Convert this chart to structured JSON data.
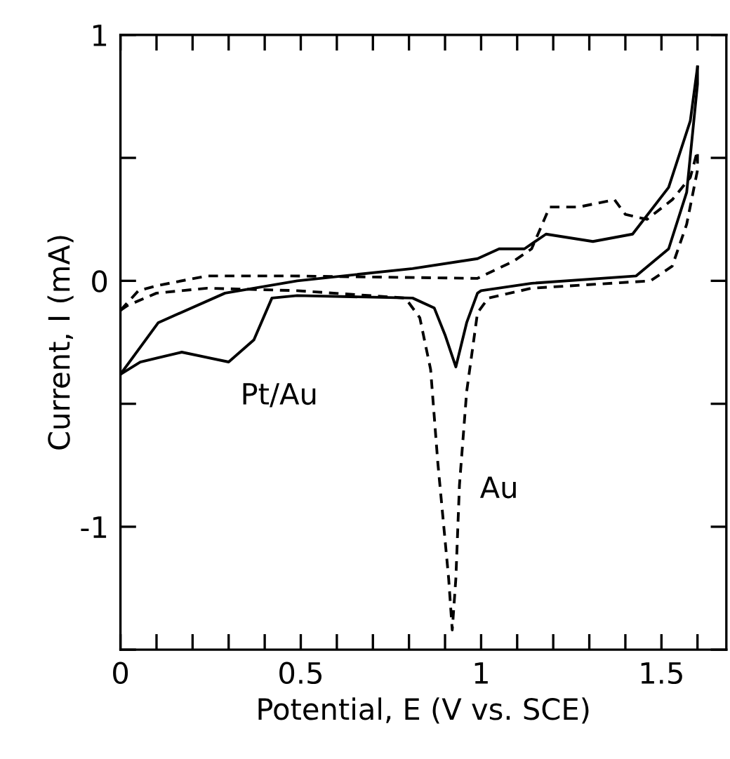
{
  "chart_data": {
    "type": "line",
    "xlabel": "Potential, E (V vs. SCE)",
    "ylabel": "Current, I (mA)",
    "series": [
      {
        "color": "#000000",
        "line_style": "solid",
        "x": [
          0,
          0.105,
          0.29,
          0.49,
          0.81,
          0.99,
          1.05,
          1.12,
          1.18,
          1.31,
          1.42,
          1.52,
          1.58,
          1.6
        ],
        "values": [
          -0.38,
          -0.17,
          -0.05,
          0.0,
          0.05,
          0.09,
          0.13,
          0.13,
          0.19,
          0.16,
          0.19,
          0.38,
          0.65,
          0.87
        ]
      },
      {
        "color": "#000000",
        "line_style": "solid",
        "x": [
          0,
          0.055,
          0.17,
          0.3,
          0.37,
          0.42,
          0.49,
          0.81,
          0.87,
          0.9,
          0.93,
          0.96,
          0.99,
          1.0,
          1.14,
          1.43,
          1.52,
          1.57,
          1.6,
          1.6
        ],
        "values": [
          -0.38,
          -0.33,
          -0.29,
          -0.33,
          -0.24,
          -0.07,
          -0.06,
          -0.07,
          -0.11,
          -0.22,
          -0.35,
          -0.17,
          -0.05,
          -0.04,
          -0.01,
          0.02,
          0.13,
          0.36,
          0.8,
          0.87
        ]
      },
      {
        "color": "#000000",
        "line_style": "dashed",
        "x": [
          0,
          0.05,
          0.1,
          0.24,
          0.47,
          0.99,
          1.09,
          1.14,
          1.19,
          1.27,
          1.37,
          1.4,
          1.46,
          1.53,
          1.58,
          1.6
        ],
        "values": [
          -0.12,
          -0.04,
          -0.02,
          0.02,
          0.02,
          0.01,
          0.08,
          0.13,
          0.3,
          0.3,
          0.33,
          0.27,
          0.25,
          0.33,
          0.42,
          0.53
        ]
      },
      {
        "color": "#000000",
        "line_style": "dashed",
        "x": [
          0,
          0.02,
          0.1,
          0.24,
          0.49,
          0.79,
          0.83,
          0.86,
          0.88,
          0.91,
          0.92,
          0.93,
          0.94,
          0.96,
          0.99,
          1.02,
          1.14,
          1.47,
          1.53,
          1.57,
          1.6,
          1.6
        ],
        "values": [
          -0.12,
          -0.1,
          -0.05,
          -0.03,
          -0.04,
          -0.07,
          -0.15,
          -0.36,
          -0.74,
          -1.21,
          -1.42,
          -1.21,
          -0.83,
          -0.45,
          -0.13,
          -0.07,
          -0.03,
          0.0,
          0.06,
          0.23,
          0.45,
          0.53
        ]
      }
    ],
    "annotations": [
      "Pt/Au",
      "Au"
    ],
    "xlim": [
      0,
      1.68
    ],
    "ylim": [
      -1.5,
      1
    ],
    "xticks": [
      0,
      {
        "value": 0.1,
        "label": null
      },
      {
        "value": 0.2,
        "label": null
      },
      {
        "value": 0.3,
        "label": null
      },
      {
        "value": 0.4,
        "label": null
      },
      0.5,
      {
        "value": 0.6,
        "label": null
      },
      {
        "value": 0.7,
        "label": null
      },
      {
        "value": 0.8,
        "label": null
      },
      {
        "value": 0.9,
        "label": null
      },
      1,
      {
        "value": 1.1,
        "label": null
      },
      {
        "value": 1.2,
        "label": null
      },
      {
        "value": 1.3,
        "label": null
      },
      {
        "value": 1.4,
        "label": null
      },
      1.5,
      {
        "value": 1.6,
        "label": null
      }
    ],
    "yticks": [
      {
        "value": -1.5,
        "label": null
      },
      -1,
      {
        "value": -0.5,
        "label": null
      },
      0,
      {
        "value": 0.5,
        "label": null
      },
      1
    ],
    "grid": false,
    "legend": false
  }
}
